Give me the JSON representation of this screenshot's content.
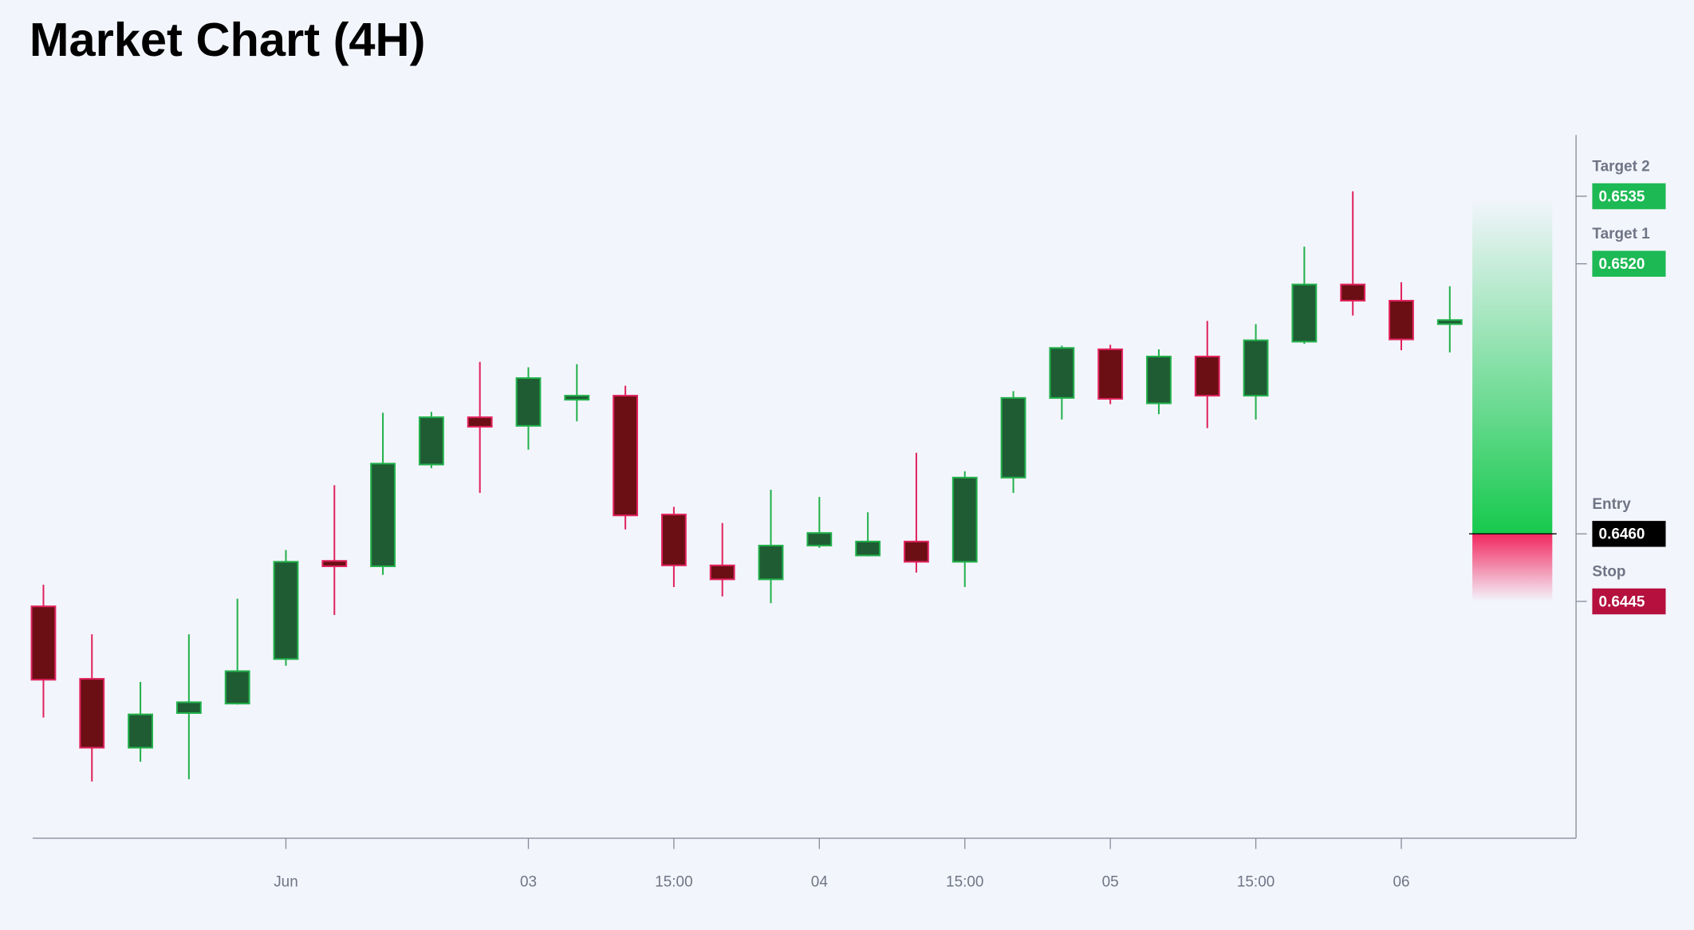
{
  "chart_data": {
    "type": "candlestick",
    "title": "Market Chart (4H)",
    "categories": [
      null,
      null,
      null,
      null,
      null,
      "Jun",
      null,
      null,
      null,
      null,
      "03",
      null,
      null,
      "15:00",
      null,
      null,
      "04",
      null,
      null,
      "15:00",
      null,
      null,
      "05",
      null,
      null,
      "15:00",
      null,
      null,
      "06",
      null
    ],
    "open": [
      0.64439,
      0.64278,
      0.64125,
      0.64202,
      0.64223,
      0.64322,
      0.6454,
      0.64528,
      0.64754,
      0.64859,
      0.6484,
      0.64898,
      0.64907,
      0.64643,
      0.6453,
      0.64499,
      0.64574,
      0.64552,
      0.64583,
      0.64538,
      0.64725,
      0.64902,
      0.6501,
      0.6489,
      0.64994,
      0.64907,
      0.65027,
      0.65154,
      0.65118,
      0.65066
    ],
    "high": [
      0.64487,
      0.64377,
      0.64271,
      0.64377,
      0.64456,
      0.64564,
      0.64708,
      0.64869,
      0.64871,
      0.64982,
      0.6497,
      0.64977,
      0.64929,
      0.6466,
      0.64624,
      0.64698,
      0.64682,
      0.64648,
      0.6478,
      0.64739,
      0.64917,
      0.65018,
      0.6502,
      0.6501,
      0.65073,
      0.65066,
      0.65238,
      0.65361,
      0.65159,
      0.6515
    ],
    "low": [
      0.64192,
      0.6405,
      0.64094,
      0.64055,
      0.64221,
      0.64307,
      0.6442,
      0.64509,
      0.64746,
      0.64691,
      0.64787,
      0.6485,
      0.6461,
      0.64482,
      0.64461,
      0.64446,
      0.64569,
      0.6455,
      0.64514,
      0.64482,
      0.64691,
      0.64854,
      0.64888,
      0.64866,
      0.64835,
      0.64854,
      0.65022,
      0.65085,
      0.65008,
      0.65003
    ],
    "close": [
      0.64276,
      0.64125,
      0.64199,
      0.64226,
      0.64295,
      0.64538,
      0.64528,
      0.64756,
      0.64859,
      0.64838,
      0.64946,
      0.64907,
      0.64641,
      0.6453,
      0.64499,
      0.64574,
      0.64602,
      0.64583,
      0.64538,
      0.64725,
      0.64902,
      0.65013,
      0.649,
      0.64994,
      0.64907,
      0.6503,
      0.65154,
      0.65118,
      0.65032,
      0.65075
    ],
    "up_color": "#22b14c",
    "up_fill": "#1f5c33",
    "down_color": "#e0245e",
    "down_fill": "#6b0f14",
    "ylim": [
      0.63924,
      0.65486
    ],
    "levels": [
      {
        "name": "Target 2",
        "value": 0.6535,
        "color": "#1db954"
      },
      {
        "name": "Target 1",
        "value": 0.652,
        "value_label": "0.6520",
        "color": "#1db954"
      },
      {
        "name": "Entry",
        "value": 0.646,
        "value_label": "0.6460",
        "color": "#000000"
      },
      {
        "name": "Stop",
        "value": 0.6445,
        "color": "#b5103e"
      }
    ]
  }
}
